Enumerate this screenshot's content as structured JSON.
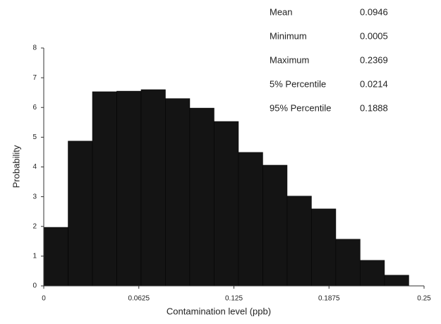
{
  "chart_data": {
    "type": "histogram",
    "xlabel": "Contamination level (ppb)",
    "ylabel": "Probability",
    "bins": [
      0,
      0.016,
      0.032,
      0.048,
      0.064,
      0.08,
      0.096,
      0.112,
      0.128,
      0.144,
      0.16,
      0.176,
      0.192,
      0.208,
      0.224,
      0.24
    ],
    "values": [
      1.97,
      4.87,
      6.53,
      6.55,
      6.6,
      6.3,
      5.98,
      5.53,
      4.49,
      4.06,
      3.02,
      2.59,
      1.57,
      0.86,
      0.36
    ],
    "color": "#141414",
    "xlim": [
      0,
      0.25
    ],
    "xticks": [
      0,
      0.0625,
      0.125,
      0.1875,
      0.25
    ],
    "ylim": [
      0,
      8
    ],
    "yticks": [
      0,
      1,
      2,
      3,
      4,
      5,
      6,
      7,
      8
    ],
    "annotations": [
      {
        "label": "Mean",
        "value": "0.0946"
      },
      {
        "label": "Minimum",
        "value": "0.0005"
      },
      {
        "label": "Maximum",
        "value": "0.2369"
      },
      {
        "label": "5% Percentile",
        "value": "0.0214"
      },
      {
        "label": "95% Percentile",
        "value": "0.1888"
      }
    ]
  }
}
